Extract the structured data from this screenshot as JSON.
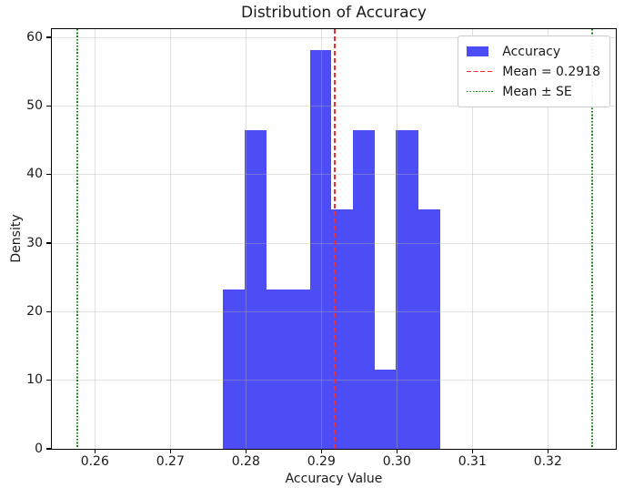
{
  "title": "Distribution of Accuracy",
  "legend": {
    "items": [
      {
        "label": "Accuracy",
        "swatch": "patch",
        "color": "#4d4df5"
      },
      {
        "label": "Mean = 0.2918",
        "swatch": "dashed",
        "color": "#f22c2c"
      },
      {
        "label": "Mean ± SE",
        "swatch": "dotted",
        "color": "#148014"
      }
    ]
  },
  "chart_data": {
    "type": "bar",
    "subtype": "histogram-density",
    "title": "Distribution of Accuracy",
    "xlabel": "Accuracy Value",
    "ylabel": "Density",
    "xlim": [
      0.2543,
      0.329
    ],
    "ylim": [
      0,
      61.2
    ],
    "xticks": [
      0.26,
      0.27,
      0.28,
      0.29,
      0.3,
      0.31,
      0.32
    ],
    "xtick_labels": [
      "0.26",
      "0.27",
      "0.28",
      "0.29",
      "0.30",
      "0.31",
      "0.32"
    ],
    "yticks": [
      0,
      10,
      20,
      30,
      40,
      50,
      60
    ],
    "ytick_labels": [
      "0",
      "10",
      "20",
      "30",
      "40",
      "50",
      "60"
    ],
    "bin_edges": [
      0.277,
      0.2799,
      0.2827,
      0.2856,
      0.2885,
      0.2913,
      0.2942,
      0.2971,
      0.2999,
      0.3028,
      0.3057
    ],
    "densities": [
      23.2,
      46.5,
      23.2,
      23.2,
      58.1,
      34.9,
      46.5,
      11.6,
      46.5,
      34.9
    ],
    "mean": 0.2918,
    "mean_label": "Mean = 0.2918",
    "se_label": "Mean ± SE",
    "mean_minus_se": 0.2577,
    "mean_plus_se": 0.3259,
    "grid": true,
    "legend_position": "upper right",
    "bar_color": "#4d4df5",
    "mean_line_color": "#f22c2c",
    "se_line_color": "#148014"
  }
}
